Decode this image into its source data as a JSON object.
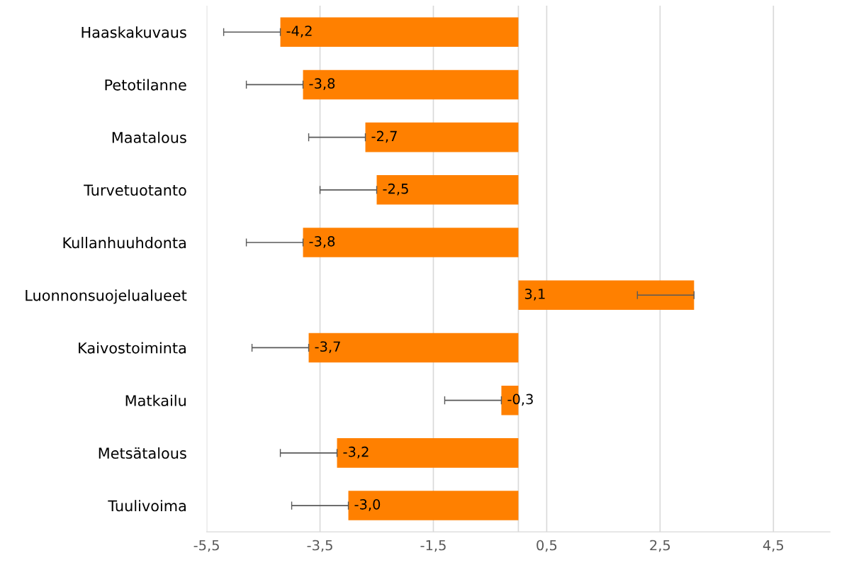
{
  "chart_data": {
    "type": "bar",
    "orientation": "horizontal",
    "categories": [
      "Haaskakuvaus",
      "Petotilanne",
      "Maatalous",
      "Turvetuotanto",
      "Kullanhuuhdonta",
      "Luonnonsuojelualueet",
      "Kaivostoiminta",
      "Matkailu",
      "Metsätalous",
      "Tuulivoima"
    ],
    "values": [
      -4.2,
      -3.8,
      -2.7,
      -2.5,
      -3.8,
      3.1,
      -3.7,
      -0.3,
      -3.2,
      -3.0
    ],
    "value_labels": [
      "-4,2",
      "-3,8",
      "-2,7",
      "-2,5",
      "-3,8",
      "3,1",
      "-3,7",
      "-0,3",
      "-3,2",
      "-3,0"
    ],
    "errors": [
      [
        -5.2,
        -4.2
      ],
      [
        -4.8,
        -3.8
      ],
      [
        -3.7,
        -2.7
      ],
      [
        -3.5,
        -2.5
      ],
      [
        -4.8,
        -3.8
      ],
      [
        2.1,
        3.1
      ],
      [
        -4.7,
        -3.7
      ],
      [
        -1.3,
        -0.3
      ],
      [
        -4.2,
        -3.2
      ],
      [
        -4.0,
        -3.0
      ]
    ],
    "color": "#ff8000",
    "xlim": [
      -5.5,
      5.5
    ],
    "xticks": [
      {
        "value": -5.5,
        "label": "-5,5"
      },
      {
        "value": -3.5,
        "label": "-3,5"
      },
      {
        "value": -1.5,
        "label": "-1,5"
      },
      {
        "value": 0.5,
        "label": "0,5"
      },
      {
        "value": 2.5,
        "label": "2,5"
      },
      {
        "value": 4.5,
        "label": "4,5"
      }
    ],
    "ref_lines": [
      {
        "axis": "x",
        "value": 0,
        "color": "#d9d9d9"
      }
    ],
    "grid": "x",
    "legend": false
  }
}
